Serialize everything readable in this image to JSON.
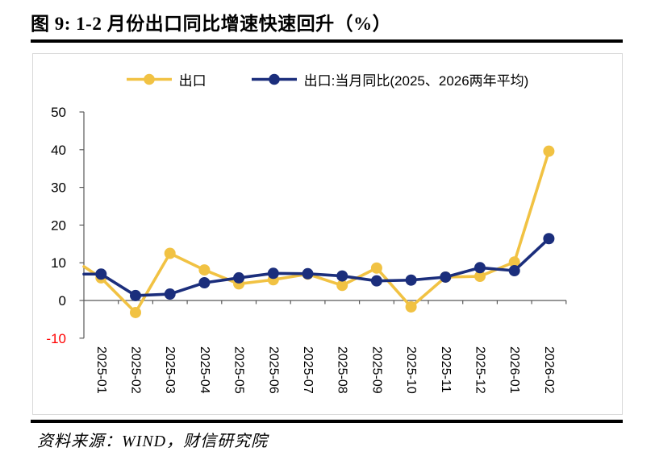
{
  "figure": {
    "number_and_title": "图 9: 1-2 月份出口同比增速快速回升（%）",
    "source_note": "资料来源：WIND，财信研究院"
  },
  "chart_data": {
    "type": "line",
    "title": "图 9: 1-2 月份出口同比增速快速回升（%）",
    "unit": "%",
    "categories": [
      "2025-01",
      "2025-02",
      "2025-03",
      "2025-04",
      "2025-05",
      "2025-06",
      "2025-07",
      "2025-08",
      "2025-09",
      "2025-10",
      "2025-11",
      "2025-12",
      "2026-01",
      "2026-02"
    ],
    "series": [
      {
        "name": "出口",
        "color": "#F1C243",
        "marker": "circle",
        "values": [
          6.0,
          -3.2,
          12.5,
          8.1,
          4.4,
          5.5,
          7.0,
          4.0,
          8.6,
          -1.7,
          6.2,
          6.4,
          10.2,
          39.6
        ],
        "clipped_left_edge_value": 9.0
      },
      {
        "name": "出口:当月同比(2025、2026两年平均)",
        "color": "#1B2E7C",
        "marker": "circle",
        "values": [
          7.0,
          1.3,
          1.7,
          4.7,
          6.0,
          7.2,
          7.1,
          6.5,
          5.2,
          5.4,
          6.2,
          8.7,
          7.9,
          16.4
        ],
        "clipped_left_edge_value": 7.0
      }
    ],
    "ylim": [
      -10,
      50
    ],
    "yticks": [
      50,
      40,
      30,
      20,
      10,
      0,
      -10
    ],
    "axis_color": "#595959",
    "negative_tick_color": "#FF0000",
    "grid": false,
    "legend_position": "top",
    "x_tick_style": "short ticks on zero baseline between categories"
  }
}
